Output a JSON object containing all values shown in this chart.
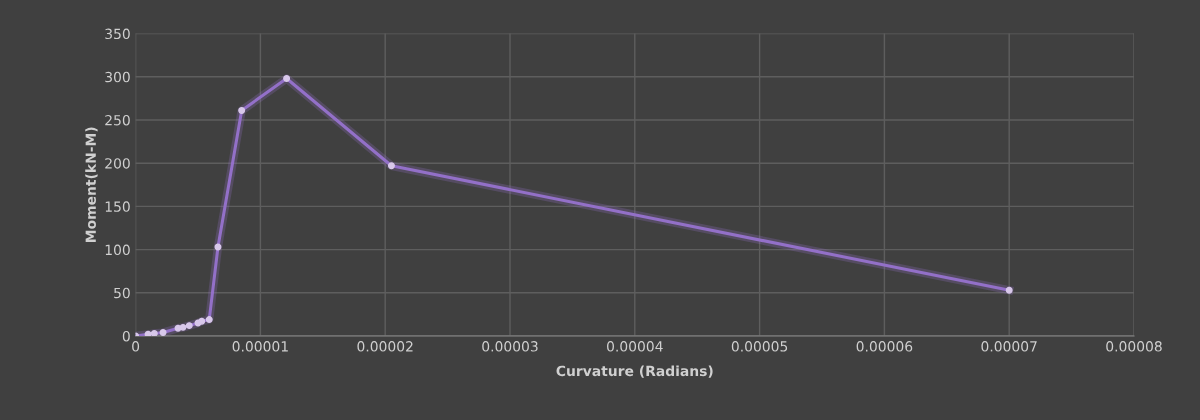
{
  "chart_data": {
    "type": "line",
    "xlabel": "Curvature (Radians)",
    "ylabel": "Moment(kN-M)",
    "series": [
      {
        "color": "#9370c8",
        "x": [
          0,
          1e-06,
          1.5e-06,
          2.2e-06,
          3.4e-06,
          3.8e-06,
          4.3e-06,
          5e-06,
          5.3e-06,
          5.9e-06,
          6.6e-06,
          8.5e-06,
          1.21e-05,
          2.05e-05,
          7e-05
        ],
        "values": [
          0,
          2,
          3,
          4,
          9,
          10,
          12,
          15,
          17,
          19,
          103,
          261,
          298,
          197,
          53
        ]
      }
    ],
    "xlim": [
      0,
      8e-05
    ],
    "ylim": [
      0,
      350
    ],
    "xticks": [
      0,
      {
        "value": 1e-05,
        "label": "0.00001"
      },
      {
        "value": 2e-05,
        "label": "0.00002"
      },
      {
        "value": 3e-05,
        "label": "0.00003"
      },
      {
        "value": 4e-05,
        "label": "0.00004"
      },
      {
        "value": 5e-05,
        "label": "0.00005"
      },
      {
        "value": 6e-05,
        "label": "0.00006"
      },
      {
        "value": 7e-05,
        "label": "0.00007"
      },
      {
        "value": 8e-05,
        "label": "0.00008"
      }
    ],
    "yticks": [
      0,
      50,
      100,
      150,
      200,
      250,
      300,
      350
    ],
    "grid": true,
    "marker": "circle",
    "line_style": "solid"
  }
}
